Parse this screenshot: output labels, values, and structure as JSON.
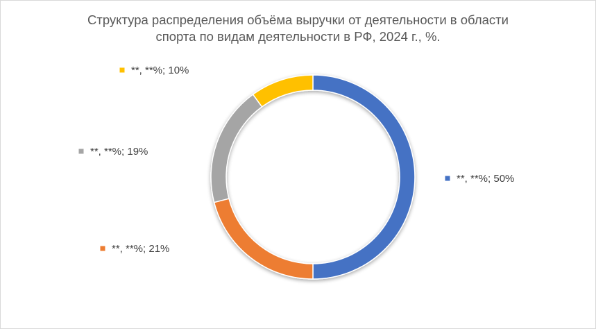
{
  "chart_data": {
    "type": "pie",
    "variant": "donut",
    "title_lines": [
      "Структура распределения объёма выручки от деятельности в области",
      "спорта по видам деятельности в РФ, 2024 г., %."
    ],
    "slices": [
      {
        "label": "**, **%; 50%",
        "value": 50,
        "color": "#4472C4"
      },
      {
        "label": "**, **%; 21%",
        "value": 21,
        "color": "#ED7D31"
      },
      {
        "label": "**, **%; 19%",
        "value": 19,
        "color": "#A5A5A5"
      },
      {
        "label": "**, **%; 10%",
        "value": 10,
        "color": "#FFC000"
      }
    ],
    "legend": "none",
    "data_labels": "outside"
  }
}
